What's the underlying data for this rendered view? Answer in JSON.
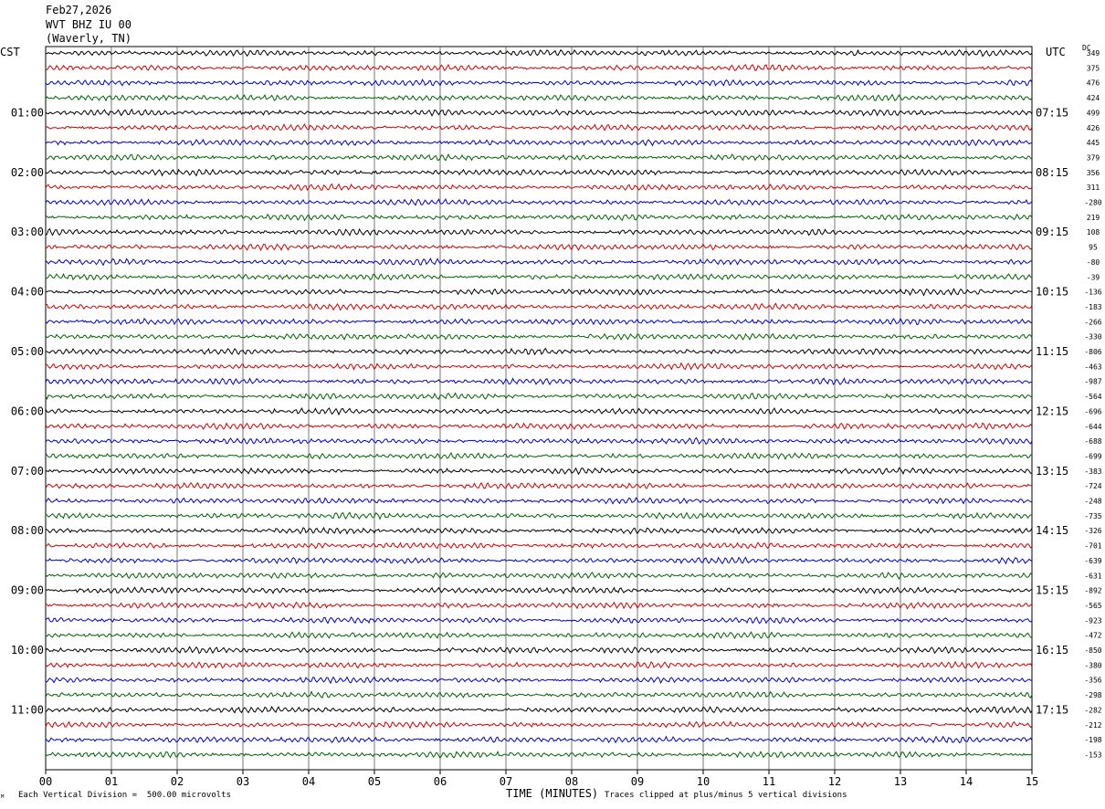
{
  "header": {
    "date": "Feb27,2026",
    "station": "WVT BHZ IU 00",
    "location": "(Waverly, TN)"
  },
  "left_tz": "CST",
  "right_tz": "UTC",
  "dc_label": "DC",
  "footer": {
    "scale_note": "Each Vertical Division =  500.00 microvolts",
    "clip_note": "Traces clipped at plus/minus 5 vertical divisions",
    "corner_mark": "ᴹ"
  },
  "colors": [
    "#000000",
    "#d40000",
    "#0000c8",
    "#006400"
  ],
  "chart_data": {
    "type": "line",
    "title": "",
    "xlabel": "TIME (MINUTES)",
    "ylabel": "",
    "xlim": [
      0,
      15
    ],
    "x_ticks": [
      "00",
      "01",
      "02",
      "03",
      "04",
      "05",
      "06",
      "07",
      "08",
      "09",
      "10",
      "11",
      "12",
      "13",
      "14",
      "15"
    ],
    "grid": true,
    "traces_per_hour": 4,
    "left_hour_labels": [
      "01:00",
      "02:00",
      "03:00",
      "04:00",
      "05:00",
      "06:00",
      "07:00",
      "08:00",
      "09:00",
      "10:00",
      "11:00"
    ],
    "right_hour_labels": [
      "07:15",
      "08:15",
      "09:15",
      "10:15",
      "11:15",
      "12:15",
      "13:15",
      "14:15",
      "15:15",
      "16:15",
      "17:15"
    ],
    "dc_offsets": [
      "349",
      "375",
      "476",
      "424",
      "499",
      "426",
      "445",
      "379",
      "356",
      "311",
      "-280",
      "219",
      "108",
      "95",
      "-80",
      "-39",
      "-136",
      "-183",
      "-266",
      "-330",
      "-806",
      "-463",
      "-987",
      "-564",
      "-696",
      "-644",
      "-688",
      "-699",
      "-383",
      "-724",
      "-248",
      "-735",
      "-326",
      "-701",
      "-639",
      "-631",
      "-892",
      "-565",
      "-923",
      "-472",
      "-850",
      "-380",
      "-356",
      "-298",
      "-282",
      "-212",
      "-198",
      "-153"
    ]
  }
}
